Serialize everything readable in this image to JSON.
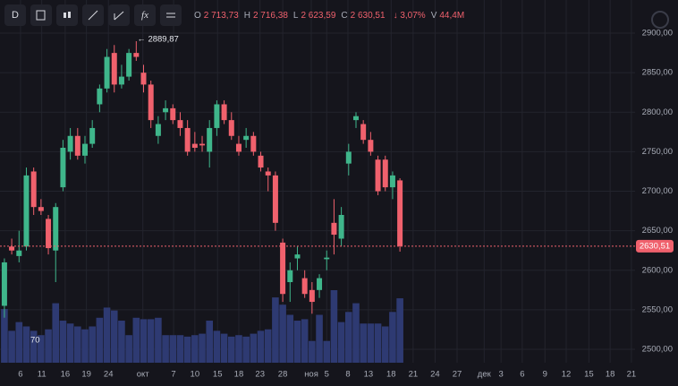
{
  "toolbar": {
    "interval": "D",
    "indicators": "fx",
    "ohlc": [
      {
        "key": "O",
        "value": "2 713,73"
      },
      {
        "key": "H",
        "value": "2 716,38"
      },
      {
        "key": "L",
        "value": "2 623,59"
      },
      {
        "key": "C",
        "value": "2 630,51"
      },
      {
        "key": "",
        "value": "↓ 3,07%"
      },
      {
        "key": "V",
        "value": "44,4M"
      }
    ]
  },
  "chart_data": {
    "type": "candlestick",
    "up_color": "#3fb68b",
    "down_color": "#f0616d",
    "volume_color": "#2e3a72",
    "open": [
      2555,
      2630,
      2618,
      2630,
      2725,
      2680,
      2665,
      2625,
      2705,
      2750,
      2770,
      2745,
      2760,
      2810,
      2830,
      2875,
      2835,
      2845,
      2875,
      2850,
      2835,
      2770,
      2800,
      2805,
      2790,
      2780,
      2760,
      2760,
      2750,
      2780,
      2810,
      2790,
      2760,
      2765,
      2770,
      2745,
      2725,
      2720,
      2635,
      2585,
      2615,
      2590,
      2575,
      2575,
      2614,
      2660,
      2640,
      2735,
      2790,
      2785,
      2765,
      2740,
      2740,
      2705,
      2713.73
    ],
    "high": [
      2615,
      2640,
      2650,
      2730,
      2730,
      2690,
      2670,
      2685,
      2765,
      2780,
      2780,
      2770,
      2790,
      2835,
      2880,
      2885,
      2860,
      2880,
      2889.87,
      2860,
      2840,
      2795,
      2815,
      2810,
      2800,
      2790,
      2775,
      2770,
      2790,
      2815,
      2815,
      2800,
      2770,
      2780,
      2775,
      2750,
      2730,
      2725,
      2640,
      2610,
      2630,
      2600,
      2585,
      2595,
      2625,
      2690,
      2680,
      2760,
      2800,
      2790,
      2775,
      2745,
      2745,
      2725,
      2716.38
    ],
    "low": [
      2540,
      2620,
      2610,
      2625,
      2670,
      2670,
      2620,
      2585,
      2700,
      2740,
      2740,
      2735,
      2755,
      2800,
      2825,
      2825,
      2830,
      2840,
      2865,
      2825,
      2780,
      2760,
      2790,
      2785,
      2770,
      2745,
      2750,
      2750,
      2730,
      2770,
      2785,
      2765,
      2745,
      2755,
      2745,
      2725,
      2700,
      2650,
      2560,
      2560,
      2600,
      2565,
      2545,
      2565,
      2600,
      2620,
      2630,
      2720,
      2780,
      2760,
      2745,
      2695,
      2700,
      2690,
      2623.59
    ],
    "close": [
      2610,
      2625,
      2625,
      2720,
      2680,
      2675,
      2628,
      2680,
      2755,
      2770,
      2745,
      2760,
      2780,
      2830,
      2870,
      2835,
      2845,
      2875,
      2870,
      2835,
      2790,
      2785,
      2805,
      2790,
      2780,
      2750,
      2755,
      2758,
      2780,
      2810,
      2790,
      2770,
      2750,
      2770,
      2750,
      2730,
      2720,
      2660,
      2570,
      2600,
      2620,
      2570,
      2560,
      2590,
      2616,
      2645,
      2670,
      2750,
      2795,
      2765,
      2750,
      2700,
      2705,
      2720,
      2630.51
    ],
    "volume": [
      37,
      22,
      28,
      25,
      22,
      19,
      23,
      41,
      29,
      27,
      25,
      23,
      25,
      31,
      38,
      36,
      29,
      19,
      31,
      30,
      30,
      31,
      19,
      19,
      19,
      18,
      19,
      20,
      29,
      22,
      20,
      18,
      19,
      18,
      20,
      22,
      23,
      45,
      40,
      33,
      29,
      30,
      15,
      33,
      15,
      50,
      28,
      35,
      41,
      27,
      27,
      27,
      25,
      35,
      44.4
    ],
    "y2lim": [
      0,
      250
    ],
    "xlim": [
      -0.6,
      86.1
    ],
    "xticks": [
      {
        "value": 2.2,
        "label": "6"
      },
      {
        "value": 5.1,
        "label": "11"
      },
      {
        "value": 8.3,
        "label": "16"
      },
      {
        "value": 11.2,
        "label": "19"
      },
      {
        "value": 14.2,
        "label": "24"
      },
      {
        "value": 18.9,
        "label": "окт"
      },
      {
        "value": 23.1,
        "label": "7"
      },
      {
        "value": 26,
        "label": "10"
      },
      {
        "value": 29.1,
        "label": "15"
      },
      {
        "value": 32,
        "label": "18"
      },
      {
        "value": 34.9,
        "label": "23"
      },
      {
        "value": 38,
        "label": "28"
      },
      {
        "value": 41.9,
        "label": "ноя"
      },
      {
        "value": 44,
        "label": "5"
      },
      {
        "value": 46.9,
        "label": "8"
      },
      {
        "value": 49.7,
        "label": "13"
      },
      {
        "value": 52.8,
        "label": "18"
      },
      {
        "value": 55.8,
        "label": "21"
      },
      {
        "value": 58.8,
        "label": "24"
      },
      {
        "value": 61.8,
        "label": "27"
      },
      {
        "value": 65.5,
        "label": "дек"
      },
      {
        "value": 67.8,
        "label": "3"
      },
      {
        "value": 70.7,
        "label": "6"
      },
      {
        "value": 73.8,
        "label": "9"
      },
      {
        "value": 76.7,
        "label": "12"
      },
      {
        "value": 79.8,
        "label": "15"
      },
      {
        "value": 82.7,
        "label": "18"
      },
      {
        "value": 85.6,
        "label": "21"
      }
    ],
    "ylim": [
      2483,
      2942
    ],
    "yticks": [
      {
        "value": 2500,
        "label": "2500,00"
      },
      {
        "value": 2550,
        "label": "2550,00"
      },
      {
        "value": 2600,
        "label": "2600,00"
      },
      {
        "value": 2650,
        "label": "2650,00"
      },
      {
        "value": 2700,
        "label": "2700,00"
      },
      {
        "value": 2750,
        "label": "2750,00"
      },
      {
        "value": 2800,
        "label": "2800,00"
      },
      {
        "value": 2850,
        "label": "2850,00"
      },
      {
        "value": 2900,
        "label": "2900,00"
      }
    ],
    "grid": true,
    "last_price": {
      "value": 2630.51,
      "label": "2630,51"
    },
    "high_annotation": {
      "value": 2889.87,
      "label": "← 2889,87",
      "index": 18
    },
    "low_annotation": "70"
  }
}
